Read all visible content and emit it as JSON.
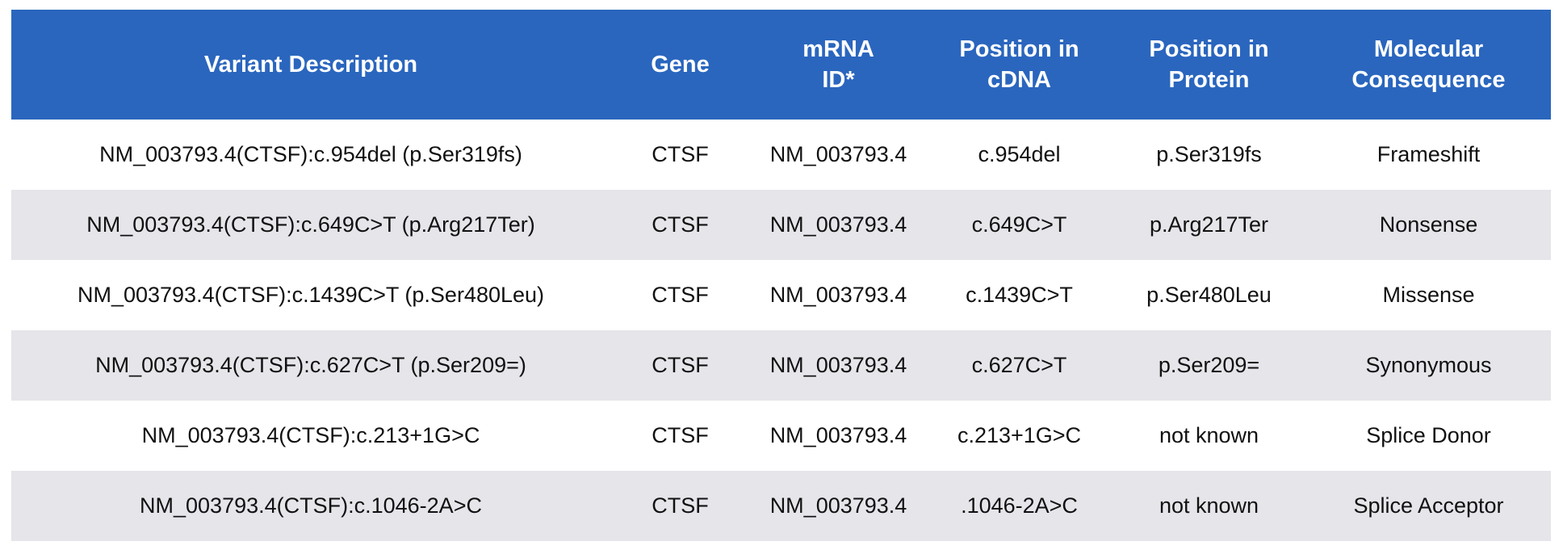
{
  "table": {
    "header": [
      [
        "Variant Description"
      ],
      [
        "Gene"
      ],
      [
        "mRNA",
        "ID*"
      ],
      [
        "Position in",
        "cDNA"
      ],
      [
        "Position in",
        "Protein"
      ],
      [
        "Molecular",
        "Consequence"
      ]
    ],
    "rows": [
      [
        "NM_003793.4(CTSF):c.954del (p.Ser319fs)",
        "CTSF",
        "NM_003793.4",
        "c.954del",
        "p.Ser319fs",
        "Frameshift"
      ],
      [
        "NM_003793.4(CTSF):c.649C>T (p.Arg217Ter)",
        "CTSF",
        "NM_003793.4",
        "c.649C>T",
        "p.Arg217Ter",
        "Nonsense"
      ],
      [
        "NM_003793.4(CTSF):c.1439C>T (p.Ser480Leu)",
        "CTSF",
        "NM_003793.4",
        "c.1439C>T",
        "p.Ser480Leu",
        "Missense"
      ],
      [
        "NM_003793.4(CTSF):c.627C>T (p.Ser209=)",
        "CTSF",
        "NM_003793.4",
        "c.627C>T",
        "p.Ser209=",
        "Synonymous"
      ],
      [
        "NM_003793.4(CTSF):c.213+1G>C",
        "CTSF",
        "NM_003793.4",
        "c.213+1G>C",
        "not known",
        "Splice Donor"
      ],
      [
        "NM_003793.4(CTSF):c.1046-2A>C",
        "CTSF",
        "NM_003793.4",
        ".1046-2A>C",
        "not known",
        "Splice Acceptor"
      ]
    ]
  }
}
